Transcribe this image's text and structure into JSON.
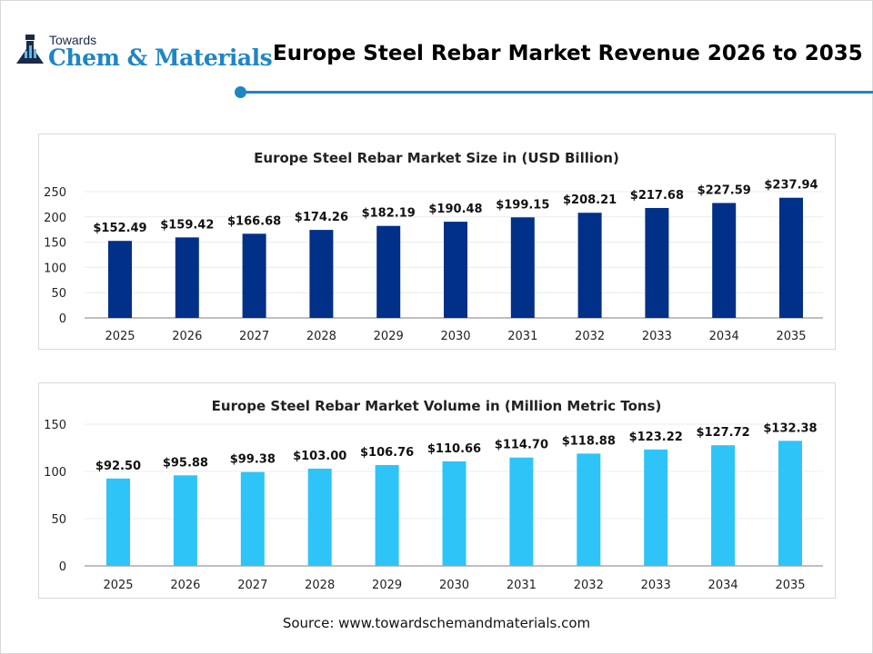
{
  "header": {
    "logo_small": "Towards",
    "logo_large": "Chem & Materials",
    "title": "Europe Steel Rebar Market Revenue 2026 to 2035"
  },
  "chart_data": [
    {
      "type": "bar",
      "title": "Europe Steel Rebar Market Size in (USD Billion)",
      "categories": [
        "2025",
        "2026",
        "2027",
        "2028",
        "2029",
        "2030",
        "2031",
        "2032",
        "2033",
        "2034",
        "2035"
      ],
      "values": [
        152.49,
        159.42,
        166.68,
        174.26,
        182.19,
        190.48,
        199.15,
        208.21,
        217.68,
        227.59,
        237.94
      ],
      "labels": [
        "$152.49",
        "$159.42",
        "$166.68",
        "$174.26",
        "$182.19",
        "$190.48",
        "$199.15",
        "$208.21",
        "$217.68",
        "$227.59",
        "$237.94"
      ],
      "yticks": [
        "0",
        "50",
        "100",
        "150",
        "200",
        "250"
      ],
      "ylim": [
        0,
        250
      ],
      "grid": true,
      "color": "#003087",
      "xlabel": "",
      "ylabel": ""
    },
    {
      "type": "bar",
      "title": "Europe Steel Rebar Market Volume in (Million Metric Tons)",
      "categories": [
        "2025",
        "2026",
        "2027",
        "2028",
        "2029",
        "2030",
        "2031",
        "2032",
        "2033",
        "2034",
        "2035"
      ],
      "values": [
        92.5,
        95.88,
        99.38,
        103.0,
        106.76,
        110.66,
        114.7,
        118.88,
        123.22,
        127.72,
        132.38
      ],
      "labels": [
        "$92.50",
        "$95.88",
        "$99.38",
        "$103.00",
        "$106.76",
        "$110.66",
        "$114.70",
        "$118.88",
        "$123.22",
        "$127.72",
        "$132.38"
      ],
      "yticks": [
        "0",
        "50",
        "100",
        "150"
      ],
      "ylim": [
        0,
        150
      ],
      "grid": true,
      "color": "#2ec4f8",
      "xlabel": "",
      "ylabel": ""
    }
  ],
  "footer": {
    "source": "Source: www.towardschemandmaterials.com"
  }
}
